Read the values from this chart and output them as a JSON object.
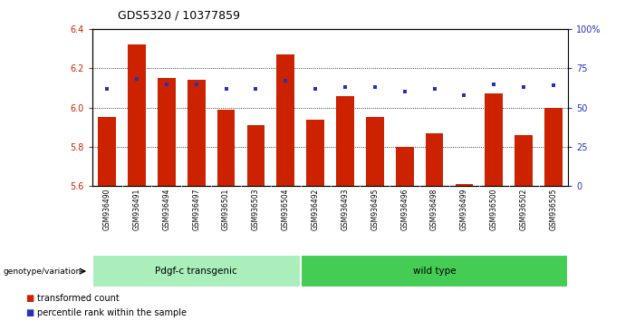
{
  "title": "GDS5320 / 10377859",
  "samples": [
    "GSM936490",
    "GSM936491",
    "GSM936494",
    "GSM936497",
    "GSM936501",
    "GSM936503",
    "GSM936504",
    "GSM936492",
    "GSM936493",
    "GSM936495",
    "GSM936496",
    "GSM936498",
    "GSM936499",
    "GSM936500",
    "GSM936502",
    "GSM936505"
  ],
  "bar_values": [
    5.95,
    6.32,
    6.15,
    6.14,
    5.99,
    5.91,
    6.27,
    5.94,
    6.06,
    5.95,
    5.8,
    5.87,
    5.61,
    6.07,
    5.86,
    6.0
  ],
  "percentile_values": [
    62,
    68,
    65,
    65,
    62,
    62,
    67,
    62,
    63,
    63,
    60,
    62,
    58,
    65,
    63,
    64
  ],
  "ymin": 5.6,
  "ymax": 6.4,
  "y_ticks": [
    5.6,
    5.8,
    6.0,
    6.2,
    6.4
  ],
  "right_yticks": [
    0,
    25,
    50,
    75,
    100
  ],
  "bar_color": "#cc2200",
  "percentile_color": "#2233bb",
  "group1_label": "Pdgf-c transgenic",
  "group2_label": "wild type",
  "group1_color": "#aaeebb",
  "group2_color": "#44cc55",
  "group1_count": 7,
  "group2_count": 9,
  "legend_bar_label": "transformed count",
  "legend_pct_label": "percentile rank within the sample",
  "genotype_label": "genotype/variation",
  "bar_width": 0.6,
  "background_color": "#ffffff",
  "tick_area_bg": "#cccccc"
}
